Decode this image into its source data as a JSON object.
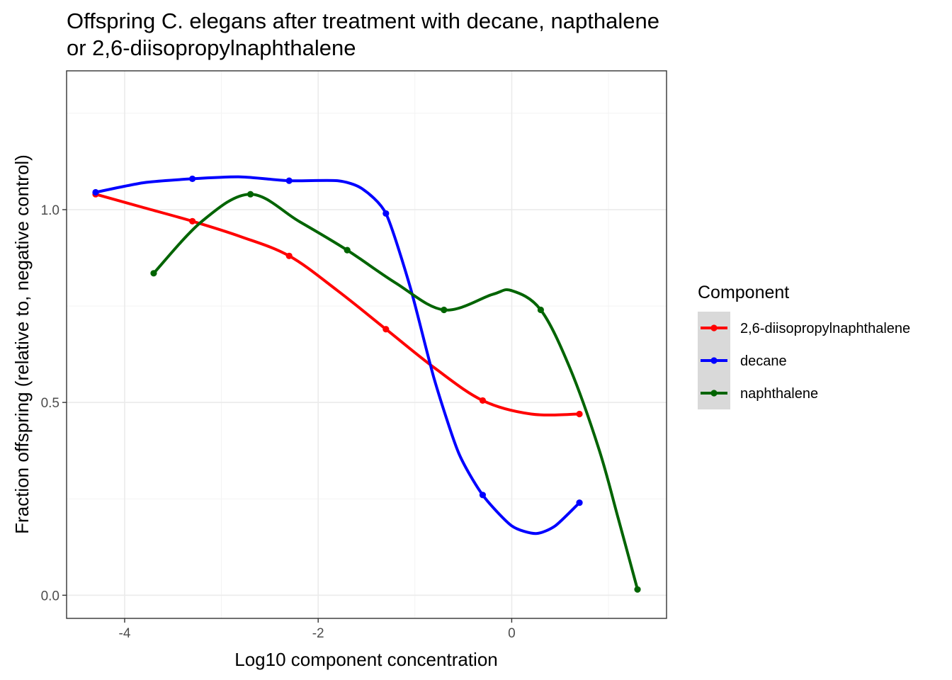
{
  "chart_data": {
    "type": "line",
    "title": "Offspring C. elegans after treatment with decane, napthalene or 2,6-diisopropylnaphthalene",
    "title_lines": [
      "Offspring C. elegans after treatment with decane, napthalene",
      "or 2,6-diisopropylnaphthalene"
    ],
    "xlabel": "Log10 component concentration",
    "ylabel": "Fraction offspring (relative to, negative control)",
    "xlim": [
      -4.6,
      1.6
    ],
    "ylim": [
      -0.06,
      1.36
    ],
    "x_ticks": [
      -4,
      -2,
      0
    ],
    "x_tick_labels": [
      "-4",
      "-2",
      "0"
    ],
    "x_minor_ticks": [
      -3,
      -1,
      1
    ],
    "y_ticks": [
      0.0,
      0.5,
      1.0
    ],
    "y_tick_labels": [
      "0.0",
      "0.5",
      "1.0"
    ],
    "y_minor_ticks": [
      0.25,
      0.75,
      1.25
    ],
    "grid": true,
    "legend_title": "Component",
    "legend_position": "right",
    "series": [
      {
        "name": "2,6-diisopropylnaphthalene",
        "color": "#ff0000",
        "x": [
          -4.3,
          -3.3,
          -2.3,
          -1.3,
          -0.3,
          0.7
        ],
        "y": [
          1.04,
          0.97,
          0.88,
          0.69,
          0.505,
          0.47
        ],
        "smooth_x": [
          -4.3,
          -3.8,
          -3.3,
          -2.8,
          -2.3,
          -1.8,
          -1.3,
          -0.8,
          -0.3,
          0.2,
          0.7
        ],
        "smooth_y": [
          1.04,
          1.005,
          0.97,
          0.93,
          0.88,
          0.79,
          0.69,
          0.59,
          0.505,
          0.47,
          0.47
        ]
      },
      {
        "name": "decane",
        "color": "#0000ff",
        "x": [
          -4.3,
          -3.3,
          -2.3,
          -1.3,
          -0.3,
          0.7
        ],
        "y": [
          1.045,
          1.08,
          1.075,
          0.99,
          0.26,
          0.24
        ],
        "smooth_x": [
          -4.3,
          -3.8,
          -3.3,
          -2.8,
          -2.3,
          -1.8,
          -1.55,
          -1.3,
          -1.05,
          -0.8,
          -0.55,
          -0.3,
          0.0,
          0.25,
          0.45,
          0.7
        ],
        "smooth_y": [
          1.045,
          1.07,
          1.08,
          1.085,
          1.075,
          1.075,
          1.055,
          0.99,
          0.8,
          0.56,
          0.37,
          0.26,
          0.18,
          0.16,
          0.18,
          0.24
        ],
        "curve_tension": 0.35
      },
      {
        "name": "naphthalene",
        "color": "#006400",
        "x": [
          -3.7,
          -2.7,
          -1.7,
          -0.7,
          0.3,
          1.3
        ],
        "y": [
          0.835,
          1.04,
          0.895,
          0.74,
          0.74,
          0.015
        ],
        "smooth_x": [
          -3.7,
          -3.2,
          -2.7,
          -2.2,
          -1.7,
          -1.2,
          -0.7,
          -0.2,
          0.0,
          0.3,
          0.6,
          0.9,
          1.1,
          1.3
        ],
        "smooth_y": [
          0.835,
          0.97,
          1.04,
          0.97,
          0.895,
          0.81,
          0.74,
          0.78,
          0.79,
          0.74,
          0.59,
          0.38,
          0.2,
          0.015
        ]
      }
    ]
  }
}
